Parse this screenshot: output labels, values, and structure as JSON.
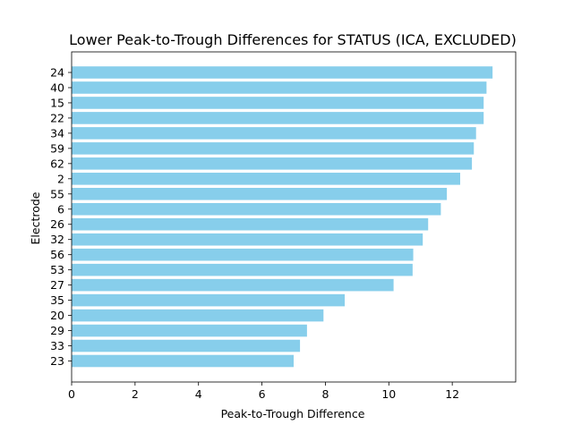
{
  "chart_data": {
    "type": "bar",
    "orientation": "horizontal",
    "title": "Lower Peak-to-Trough Differences for STATUS (ICA, EXCLUDED)",
    "xlabel": "Peak-to-Trough Difference",
    "ylabel": "Electrode",
    "categories": [
      "24",
      "40",
      "15",
      "22",
      "34",
      "59",
      "62",
      "2",
      "55",
      "6",
      "26",
      "32",
      "56",
      "53",
      "27",
      "35",
      "20",
      "29",
      "33",
      "23"
    ],
    "values": [
      13.27,
      13.08,
      12.99,
      12.99,
      12.75,
      12.68,
      12.62,
      12.25,
      11.83,
      11.64,
      11.24,
      11.07,
      10.77,
      10.75,
      10.15,
      8.61,
      7.94,
      7.42,
      7.2,
      7.0
    ],
    "xlim": [
      0,
      14
    ],
    "xticks": [
      0,
      2,
      4,
      6,
      8,
      10,
      12
    ],
    "bar_color": "#87ceeb",
    "grid": false,
    "legend": "none"
  }
}
